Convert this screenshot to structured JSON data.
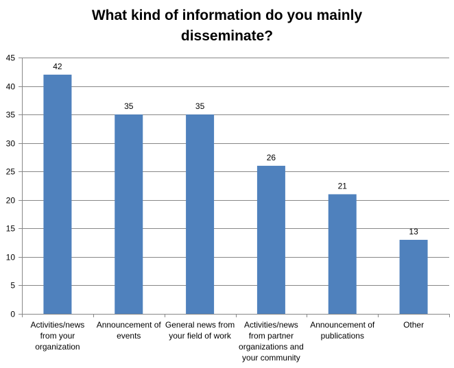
{
  "chart_data": {
    "type": "bar",
    "title_lines": [
      "What kind of information do you mainly",
      "disseminate?"
    ],
    "categories": [
      [
        "Activities/news",
        "from your",
        "organization"
      ],
      [
        "Announcement of",
        "events"
      ],
      [
        "General news from",
        "your field of work"
      ],
      [
        "Activities/news",
        "from partner",
        "organizations and",
        "your community"
      ],
      [
        "Announcement of",
        "publications"
      ],
      [
        "Other"
      ]
    ],
    "values": [
      42,
      35,
      35,
      26,
      21,
      13
    ],
    "data_labels": [
      "42",
      "35",
      "35",
      "26",
      "21",
      "13"
    ],
    "ylim": [
      0,
      45
    ],
    "yticks": [
      0,
      5,
      10,
      15,
      20,
      25,
      30,
      35,
      40,
      45
    ],
    "ytick_labels": [
      "0",
      "5",
      "10",
      "15",
      "20",
      "25",
      "30",
      "35",
      "40",
      "45"
    ],
    "grid": true,
    "legend": "none",
    "bar_color": "#4F81BD",
    "grid_color": "#878787",
    "axis_color": "#878787"
  }
}
